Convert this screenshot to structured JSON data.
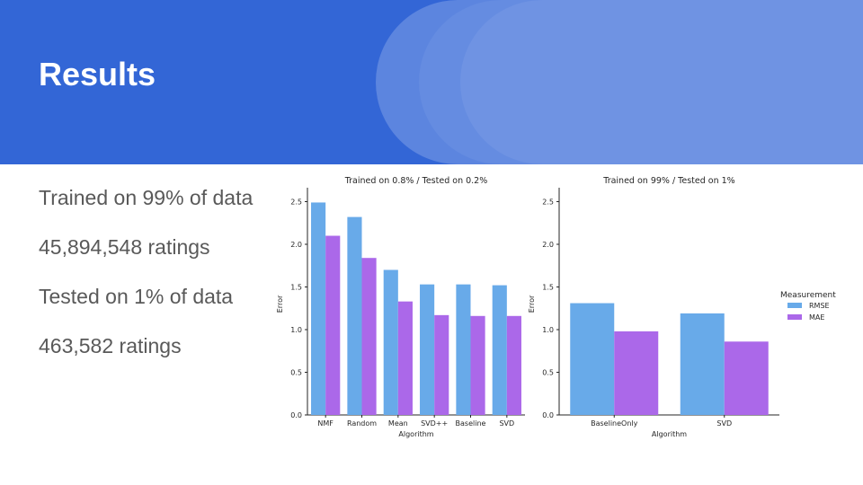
{
  "slide": {
    "title": "Results",
    "bullets": [
      "Trained on 99% of data",
      "45,894,548 ratings",
      "Tested on 1% of data",
      "463,582 ratings"
    ]
  },
  "colors": {
    "rmse": "#68aae9",
    "mae": "#ab68e9",
    "header": "#3366d6"
  },
  "legend": {
    "title": "Measurement",
    "items": [
      "RMSE",
      "MAE"
    ]
  },
  "chart_data": [
    {
      "type": "bar",
      "title": "Trained on 0.8% / Tested on 0.2%",
      "xlabel": "Algorithm",
      "ylabel": "Error",
      "ylim": [
        0,
        2.6
      ],
      "yticks": [
        "0.0",
        "0.5",
        "1.0",
        "1.5",
        "2.0",
        "2.5"
      ],
      "categories": [
        "NMF",
        "Random",
        "Mean",
        "SVD++",
        "Baseline",
        "SVD"
      ],
      "series": [
        {
          "name": "RMSE",
          "values": [
            2.49,
            2.32,
            1.7,
            1.53,
            1.53,
            1.52
          ]
        },
        {
          "name": "MAE",
          "values": [
            2.1,
            1.84,
            1.33,
            1.17,
            1.16,
            1.16
          ]
        }
      ]
    },
    {
      "type": "bar",
      "title": "Trained on 99% / Tested on 1%",
      "xlabel": "Algorithm",
      "ylabel": "Error",
      "ylim": [
        0,
        2.6
      ],
      "yticks": [
        "0.0",
        "0.5",
        "1.0",
        "1.5",
        "2.0",
        "2.5"
      ],
      "categories": [
        "BaselineOnly",
        "SVD"
      ],
      "series": [
        {
          "name": "RMSE",
          "values": [
            1.31,
            1.19
          ]
        },
        {
          "name": "MAE",
          "values": [
            0.98,
            0.86
          ]
        }
      ]
    }
  ]
}
